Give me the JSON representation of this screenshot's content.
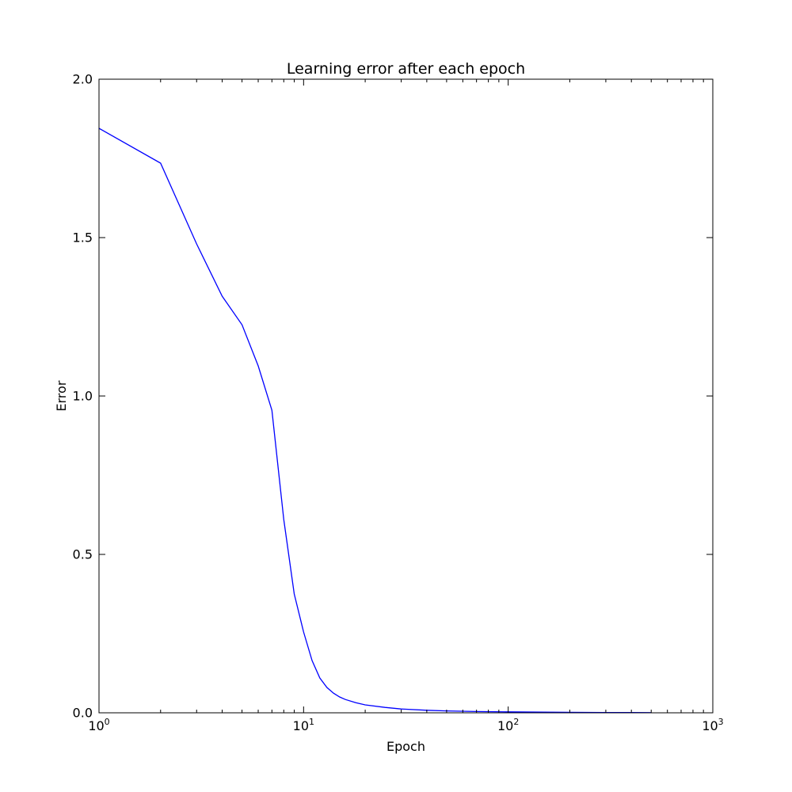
{
  "chart_data": {
    "type": "line",
    "title": "Learning error after each epoch",
    "xlabel": "Epoch",
    "ylabel": "Error",
    "xscale": "log",
    "xlim": [
      1,
      1000
    ],
    "ylim": [
      0.0,
      2.0
    ],
    "grid": false,
    "legend": "none",
    "x_ticks": [
      {
        "value": 1,
        "base": "10",
        "exp": "0"
      },
      {
        "value": 10,
        "base": "10",
        "exp": "1"
      },
      {
        "value": 100,
        "base": "10",
        "exp": "2"
      },
      {
        "value": 1000,
        "base": "10",
        "exp": "3"
      }
    ],
    "y_ticks": [
      {
        "value": 0.0,
        "label": "0.0"
      },
      {
        "value": 0.5,
        "label": "0.5"
      },
      {
        "value": 1.0,
        "label": "1.0"
      },
      {
        "value": 1.5,
        "label": "1.5"
      },
      {
        "value": 2.0,
        "label": "2.0"
      }
    ],
    "series": [
      {
        "color": "#0000ff",
        "x": [
          1,
          2,
          3,
          4,
          5,
          6,
          7,
          8,
          9,
          10,
          11,
          12,
          13,
          14,
          15,
          16,
          18,
          20,
          25,
          30,
          40,
          50,
          70,
          100,
          150,
          200,
          300,
          400,
          500
        ],
        "y": [
          1.845,
          1.735,
          1.48,
          1.315,
          1.225,
          1.095,
          0.955,
          0.61,
          0.375,
          0.255,
          0.165,
          0.11,
          0.08,
          0.062,
          0.05,
          0.042,
          0.032,
          0.025,
          0.017,
          0.012,
          0.008,
          0.006,
          0.004,
          0.003,
          0.002,
          0.0015,
          0.001,
          0.0008,
          0.0006
        ]
      }
    ]
  }
}
